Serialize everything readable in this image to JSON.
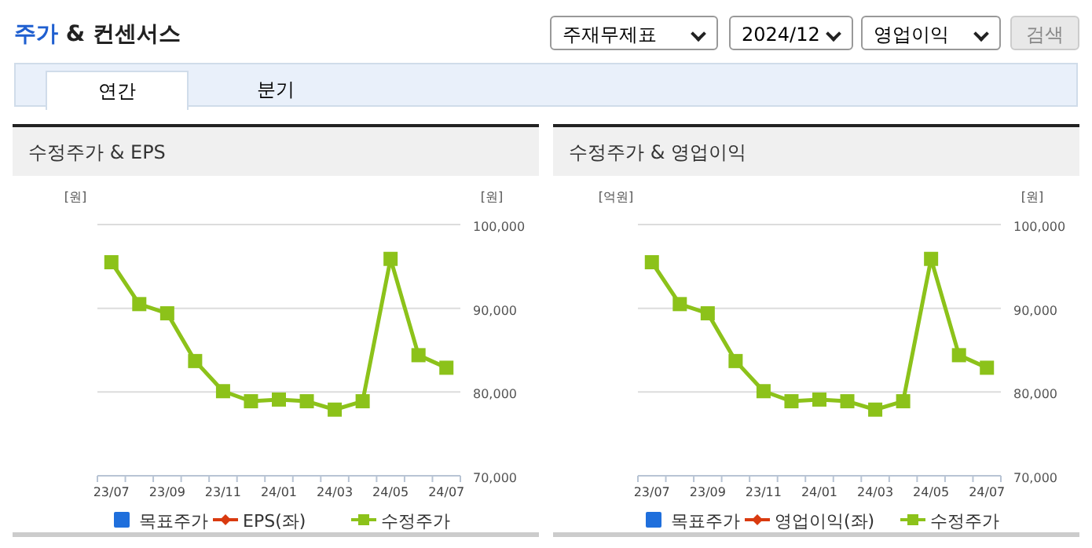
{
  "chart_data": [
    {
      "type": "other",
      "title": "주가 & 컨센서스",
      "annotations": [
        "주재무제표",
        "2024/12",
        "영업이익",
        "검색",
        "연간",
        "분기"
      ]
    },
    {
      "type": "line",
      "title": "수정주가 & EPS",
      "ylabel": "[원]",
      "y2label": "[원]",
      "categories": [
        "23/07",
        null,
        "23/09",
        null,
        "23/11",
        null,
        "24/01",
        null,
        "24/03",
        null,
        "24/05",
        null,
        "24/07"
      ],
      "y2lim": [
        70000,
        100000
      ],
      "y2ticks": [
        {
          "value": 70000,
          "label": "70,000"
        },
        {
          "value": 80000,
          "label": "80,000"
        },
        {
          "value": 90000,
          "label": "90,000"
        },
        {
          "value": 100000,
          "label": "100,000"
        }
      ],
      "grid": "y",
      "legend": "bottom",
      "line_style": "solid",
      "series": [
        {
          "name": "목표주가",
          "color": "#1f6fdc",
          "type": "line",
          "marker": "square",
          "values": [
            null,
            null,
            null,
            null,
            null,
            null,
            null,
            null,
            null,
            null,
            null,
            null,
            null
          ]
        },
        {
          "name": "EPS(좌)",
          "color": "#d93a0f",
          "type": "line",
          "marker": "diamond",
          "values": [
            null,
            null,
            null,
            null,
            null,
            null,
            null,
            null,
            null,
            null,
            null,
            null,
            null
          ]
        },
        {
          "name": "수정주가",
          "color": "#8cc21a",
          "type": "line",
          "marker": "square",
          "axis": "y2",
          "values": [
            95500,
            90500,
            89400,
            83700,
            80100,
            78900,
            79100,
            78900,
            77900,
            78900,
            95900,
            84400,
            82900
          ]
        }
      ]
    },
    {
      "type": "line",
      "title": "수정주가 & 영업이익",
      "ylabel": "[억원]",
      "y2label": "[원]",
      "categories": [
        "23/07",
        null,
        "23/09",
        null,
        "23/11",
        null,
        "24/01",
        null,
        "24/03",
        null,
        "24/05",
        null,
        "24/07"
      ],
      "y2lim": [
        70000,
        100000
      ],
      "y2ticks": [
        {
          "value": 70000,
          "label": "70,000"
        },
        {
          "value": 80000,
          "label": "80,000"
        },
        {
          "value": 90000,
          "label": "90,000"
        },
        {
          "value": 100000,
          "label": "100,000"
        }
      ],
      "grid": "y",
      "legend": "bottom",
      "line_style": "solid",
      "series": [
        {
          "name": "목표주가",
          "color": "#1f6fdc",
          "type": "line",
          "marker": "square",
          "values": [
            null,
            null,
            null,
            null,
            null,
            null,
            null,
            null,
            null,
            null,
            null,
            null,
            null
          ]
        },
        {
          "name": "영업이익(좌)",
          "color": "#d93a0f",
          "type": "line",
          "marker": "diamond",
          "values": [
            null,
            null,
            null,
            null,
            null,
            null,
            null,
            null,
            null,
            null,
            null,
            null,
            null
          ]
        },
        {
          "name": "수정주가",
          "color": "#8cc21a",
          "type": "line",
          "marker": "square",
          "axis": "y2",
          "values": [
            95500,
            90500,
            89400,
            83700,
            80100,
            78900,
            79100,
            78900,
            77900,
            78900,
            95900,
            84400,
            82900
          ]
        }
      ]
    }
  ]
}
